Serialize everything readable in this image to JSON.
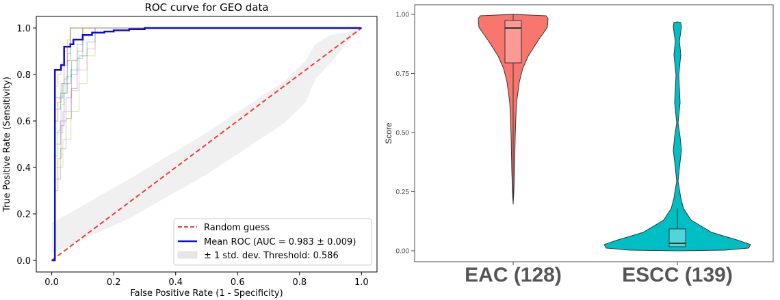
{
  "chart_data": [
    {
      "type": "line",
      "title": "ROC curve for GEO data",
      "xlabel": "False Positive Rate (1 - Specificity)",
      "ylabel": "True Positive Rate (Sensitivity)",
      "xlim": [
        -0.05,
        1.05
      ],
      "ylim": [
        -0.05,
        1.05
      ],
      "xticks": [
        "0.0",
        "0.2",
        "0.4",
        "0.6",
        "0.8",
        "1.0"
      ],
      "yticks": [
        "0.0",
        "0.2",
        "0.4",
        "0.6",
        "0.8",
        "1.0"
      ],
      "grid": false,
      "legend_position": "lower-right",
      "series": [
        {
          "name": "Random guess",
          "color": "#f03c32",
          "style": "dashed",
          "x": [
            0,
            1
          ],
          "y": [
            0,
            1
          ]
        },
        {
          "name": "Mean ROC (AUC = 0.983 ± 0.009)",
          "color": "#0b0bdc",
          "style": "solid",
          "x": [
            0,
            0.01,
            0.03,
            0.04,
            0.06,
            0.07,
            0.09,
            0.1,
            0.13,
            0.17,
            0.2,
            0.25,
            0.3,
            0.4,
            1.0
          ],
          "y": [
            0,
            0.82,
            0.84,
            0.92,
            0.93,
            0.95,
            0.95,
            0.97,
            0.98,
            0.985,
            0.99,
            0.995,
            1.0,
            1.0,
            1.0
          ]
        }
      ],
      "std_band": {
        "name": "± 1 std. dev. Threshold: 0.586",
        "color": "#e6e6e6",
        "x": [
          0,
          0.25,
          0.5,
          0.75,
          0.82,
          0.85,
          0.9,
          0.95,
          1.0
        ],
        "upper": [
          0.16,
          0.35,
          0.55,
          0.77,
          0.86,
          0.93,
          0.97,
          0.98,
          1.0
        ],
        "lower": [
          0.03,
          0.18,
          0.37,
          0.59,
          0.68,
          0.78,
          0.85,
          0.93,
          1.0
        ]
      },
      "fold_curves_colors": [
        "#8c564b",
        "#7f7f7f",
        "#bcbd22",
        "#17becf",
        "#9467bd",
        "#e377c2",
        "#d62728",
        "#2ca02c",
        "#1f77b4",
        "#ff7f0e"
      ]
    },
    {
      "type": "violin",
      "ylabel": "Score",
      "ylim": [
        0,
        1
      ],
      "yticks": [
        "0.00",
        "0.25",
        "0.50",
        "0.75",
        "1.00"
      ],
      "categories": [
        "EAC (128)",
        "ESCC (139)"
      ],
      "colors": [
        "#f8766d",
        "#00bfc4"
      ],
      "box": [
        {
          "min": 0.19,
          "q1": 0.79,
          "median": 0.94,
          "q3": 0.975,
          "max": 0.995
        },
        {
          "min": 0.0,
          "q1": 0.015,
          "median": 0.03,
          "q3": 0.095,
          "max": 0.97
        }
      ]
    }
  ]
}
